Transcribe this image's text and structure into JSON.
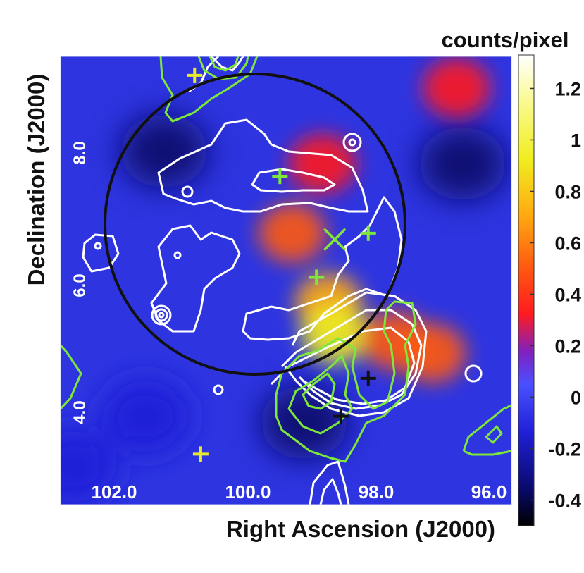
{
  "chart_data": {
    "type": "heatmap",
    "xlabel": "Right Ascension (J2000)",
    "ylabel": "Declination (J2000)",
    "x_ticks": [
      "102.0",
      "100.0",
      "98.0",
      "96.0"
    ],
    "x_tick_values": [
      102.0,
      100.0,
      98.0,
      96.0
    ],
    "y_ticks": [
      "4.0",
      "6.0",
      "8.0"
    ],
    "y_tick_values": [
      4.0,
      6.0,
      8.0
    ],
    "xlim": [
      103.0,
      95.6
    ],
    "ylim": [
      2.4,
      9.5
    ],
    "colorbar": {
      "title": "counts/pixel",
      "ticks": [
        "1.2",
        "1",
        "0.8",
        "0.6",
        "0.4",
        "0.2",
        "0",
        "-0.2",
        "-0.4"
      ],
      "tick_values": [
        1.2,
        1.0,
        0.8,
        0.6,
        0.4,
        0.2,
        0.0,
        -0.2,
        -0.4
      ],
      "range": [
        -0.5,
        1.33
      ],
      "colormap": "black-blue-red-yellow-white"
    },
    "features": {
      "hot_spots": [
        {
          "ra": 99.2,
          "dec": 6.7,
          "value": 0.45
        },
        {
          "ra": 98.6,
          "dec": 5.6,
          "value": 0.55
        },
        {
          "ra": 98.5,
          "dec": 5.1,
          "value": 0.75
        },
        {
          "ra": 97.5,
          "dec": 5.0,
          "value": 0.5
        },
        {
          "ra": 96.9,
          "dec": 4.8,
          "value": 0.45
        },
        {
          "ra": 98.7,
          "dec": 7.8,
          "value": 0.3
        },
        {
          "ra": 96.5,
          "dec": 9.0,
          "value": 0.3
        }
      ],
      "cold_spots": [
        {
          "ra": 101.3,
          "dec": 8.0,
          "value": -0.45
        },
        {
          "ra": 96.4,
          "dec": 7.8,
          "value": -0.45
        },
        {
          "ra": 99.0,
          "dec": 3.7,
          "value": -0.35
        },
        {
          "ra": 101.6,
          "dec": 3.8,
          "value": -0.25
        },
        {
          "ra": 102.8,
          "dec": 3.0,
          "value": -0.25
        }
      ],
      "circle": {
        "ra": 99.95,
        "dec": 6.8,
        "radius_deg": 2.25
      },
      "markers": [
        {
          "ra": 100.8,
          "dec": 9.2,
          "color": "#e8ea2e",
          "shape": "plus"
        },
        {
          "ra": 99.4,
          "dec": 7.6,
          "color": "#7ee83a",
          "shape": "plus"
        },
        {
          "ra": 98.8,
          "dec": 6.0,
          "color": "#7ee83a",
          "shape": "plus"
        },
        {
          "ra": 98.5,
          "dec": 6.6,
          "color": "#7ee83a",
          "shape": "cross"
        },
        {
          "ra": 97.95,
          "dec": 6.7,
          "color": "#7ee83a",
          "shape": "plus"
        },
        {
          "ra": 97.95,
          "dec": 4.4,
          "color": "#111111",
          "shape": "plus"
        },
        {
          "ra": 98.4,
          "dec": 3.8,
          "color": "#111111",
          "shape": "plus"
        },
        {
          "ra": 100.7,
          "dec": 3.2,
          "color": "#e8ea2e",
          "shape": "plus"
        }
      ]
    }
  },
  "colors": {
    "circle": "#111111",
    "white_contour": "#ffffff",
    "green_contour": "#7ee83a",
    "yellow_marker": "#e8ea2e",
    "black_marker": "#111111"
  }
}
